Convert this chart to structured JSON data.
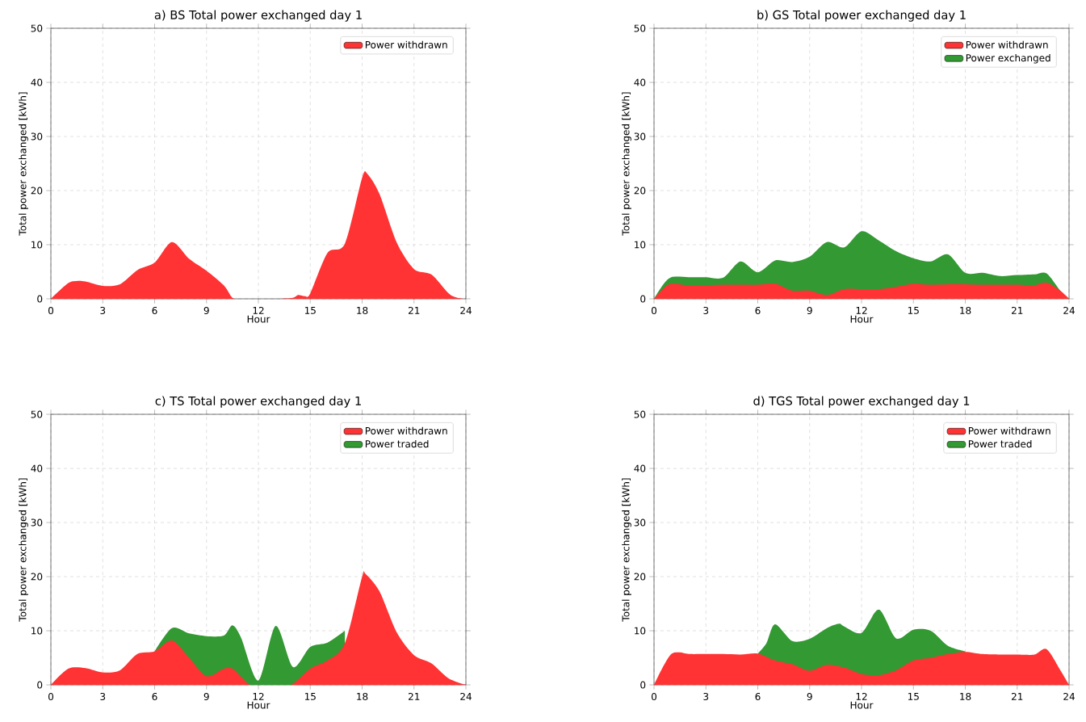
{
  "chart_data": [
    {
      "type": "area",
      "title": "a) BS Total power exchanged day 1",
      "xlabel": "Hour",
      "ylabel": "Total power exchanged [kWh]",
      "xlim": [
        0,
        24
      ],
      "xticks": [
        0,
        3,
        6,
        9,
        12,
        15,
        18,
        21,
        24
      ],
      "ylim": [
        0,
        50
      ],
      "yticks": [
        0,
        10,
        20,
        30,
        40,
        50
      ],
      "grid": true,
      "legend": "top right",
      "series": [
        {
          "name": "Power withdrawn",
          "color": "#ff3333",
          "x": [
            0,
            1,
            1.5,
            2,
            3,
            4,
            5,
            6,
            7,
            8,
            9,
            10,
            10.5,
            11,
            12,
            13,
            14,
            14.3,
            14.7,
            15,
            16,
            17,
            18,
            18.3,
            19,
            20,
            21,
            22,
            23,
            23.5,
            24
          ],
          "values": [
            0,
            2.9,
            3.3,
            3.2,
            2.4,
            2.7,
            5.3,
            6.7,
            10.5,
            7.4,
            5.2,
            2.5,
            0.2,
            0,
            0,
            0,
            0.2,
            0.7,
            0.5,
            1.0,
            8.5,
            10.2,
            22.4,
            23.1,
            19.4,
            10.4,
            5.5,
            4.5,
            1.0,
            0.2,
            0
          ]
        }
      ]
    },
    {
      "type": "area",
      "title": "b) GS Total power exchanged day 1",
      "xlabel": "Hour",
      "ylabel": "Total power exchanged [kWh]",
      "xlim": [
        0,
        24
      ],
      "xticks": [
        0,
        3,
        6,
        9,
        12,
        15,
        18,
        21,
        24
      ],
      "ylim": [
        0,
        50
      ],
      "yticks": [
        0,
        10,
        20,
        30,
        40,
        50
      ],
      "grid": true,
      "legend": "top right",
      "series": [
        {
          "name": "Power withdrawn",
          "color": "#ff3333",
          "x": [
            0,
            0.5,
            1,
            2,
            3,
            4,
            5,
            6,
            7,
            8,
            9,
            10,
            11,
            12,
            13,
            14,
            15,
            16,
            17,
            18,
            19,
            20,
            21,
            22,
            22.7,
            23.5,
            24
          ],
          "values": [
            0,
            1.8,
            2.8,
            2.5,
            2.5,
            2.6,
            2.6,
            2.6,
            2.8,
            1.5,
            1.5,
            0.7,
            1.8,
            1.8,
            1.8,
            2.2,
            2.8,
            2.6,
            2.7,
            2.7,
            2.6,
            2.6,
            2.6,
            2.5,
            3.0,
            1.5,
            0
          ]
        },
        {
          "name": "Power exchanged",
          "color": "#339933",
          "x": [
            0,
            0.5,
            1,
            2,
            3,
            4,
            5,
            6,
            7,
            8,
            9,
            10,
            11,
            12,
            13,
            14,
            15,
            16,
            17,
            18,
            19,
            20,
            21,
            22,
            22.7,
            23.5,
            24
          ],
          "values": [
            0,
            2.5,
            4.0,
            4.0,
            4.0,
            3.9,
            6.9,
            4.9,
            7.1,
            6.8,
            7.8,
            10.5,
            9.5,
            12.5,
            10.8,
            8.8,
            7.5,
            6.9,
            8.2,
            4.8,
            4.8,
            4.2,
            4.4,
            4.5,
            4.7,
            1.5,
            0
          ]
        }
      ]
    },
    {
      "type": "area",
      "title": "c) TS Total power exchanged day 1",
      "xlabel": "Hour",
      "ylabel": "Total power exchanged [kWh]",
      "xlim": [
        0,
        24
      ],
      "xticks": [
        0,
        3,
        6,
        9,
        12,
        15,
        18,
        21,
        24
      ],
      "ylim": [
        0,
        50
      ],
      "yticks": [
        0,
        10,
        20,
        30,
        40,
        50
      ],
      "grid": true,
      "legend": "top right",
      "series": [
        {
          "name": "Power withdrawn",
          "color": "#ff3333",
          "x": [
            0,
            1,
            2,
            3,
            4,
            5,
            6,
            7,
            8,
            9,
            10,
            10.5,
            11,
            11.5,
            12,
            13,
            13.9,
            15,
            16,
            17,
            18,
            18.2,
            19,
            20,
            21,
            22,
            23,
            24
          ],
          "values": [
            0,
            3.0,
            3.1,
            2.3,
            2.7,
            5.7,
            6.2,
            8.2,
            5.0,
            1.6,
            3.0,
            3.0,
            1.5,
            0,
            0,
            0,
            0,
            3.0,
            4.5,
            7.7,
            20.0,
            20.5,
            17.3,
            9.7,
            5.5,
            4.0,
            1.2,
            0
          ]
        },
        {
          "name": "Power traded",
          "color": "#339933",
          "x": [
            6,
            7,
            8,
            9,
            10,
            10.5,
            11,
            12,
            13,
            14,
            15,
            16,
            17
          ],
          "values": [
            6.2,
            10.5,
            9.5,
            9.0,
            9.1,
            11.0,
            8.7,
            0.8,
            10.9,
            3.3,
            7.0,
            7.8,
            10.0
          ]
        }
      ]
    },
    {
      "type": "area",
      "title": "d) TGS Total power exchanged day 1",
      "xlabel": "Hour",
      "ylabel": "Total power exchanged [kWh]",
      "xlim": [
        0,
        24
      ],
      "xticks": [
        0,
        3,
        6,
        9,
        12,
        15,
        18,
        21,
        24
      ],
      "ylim": [
        0,
        50
      ],
      "yticks": [
        0,
        10,
        20,
        30,
        40,
        50
      ],
      "grid": true,
      "legend": "top right",
      "series": [
        {
          "name": "Power withdrawn",
          "color": "#ff3333",
          "x": [
            0,
            0.5,
            1,
            1.5,
            2,
            3,
            4,
            5,
            6,
            7,
            8,
            9,
            10,
            11,
            12,
            13,
            14,
            15,
            16,
            17,
            18,
            19,
            20,
            21,
            22,
            22.7,
            23.5,
            24
          ],
          "values": [
            0,
            3.2,
            5.7,
            6.0,
            5.7,
            5.7,
            5.7,
            5.6,
            5.8,
            4.5,
            3.8,
            2.6,
            3.7,
            3.2,
            2.0,
            1.8,
            2.7,
            4.5,
            5.0,
            5.7,
            6.1,
            5.7,
            5.6,
            5.6,
            5.6,
            6.6,
            2.7,
            0
          ]
        },
        {
          "name": "Power traded",
          "color": "#339933",
          "x": [
            6,
            6.5,
            7,
            8,
            9,
            10,
            10.7,
            11,
            12,
            13,
            14,
            15,
            16,
            17,
            18
          ],
          "values": [
            5.8,
            7.7,
            11.2,
            8.1,
            8.5,
            10.5,
            11.3,
            10.8,
            9.6,
            13.9,
            8.6,
            10.2,
            10.0,
            7.2,
            6.2
          ]
        }
      ]
    }
  ]
}
